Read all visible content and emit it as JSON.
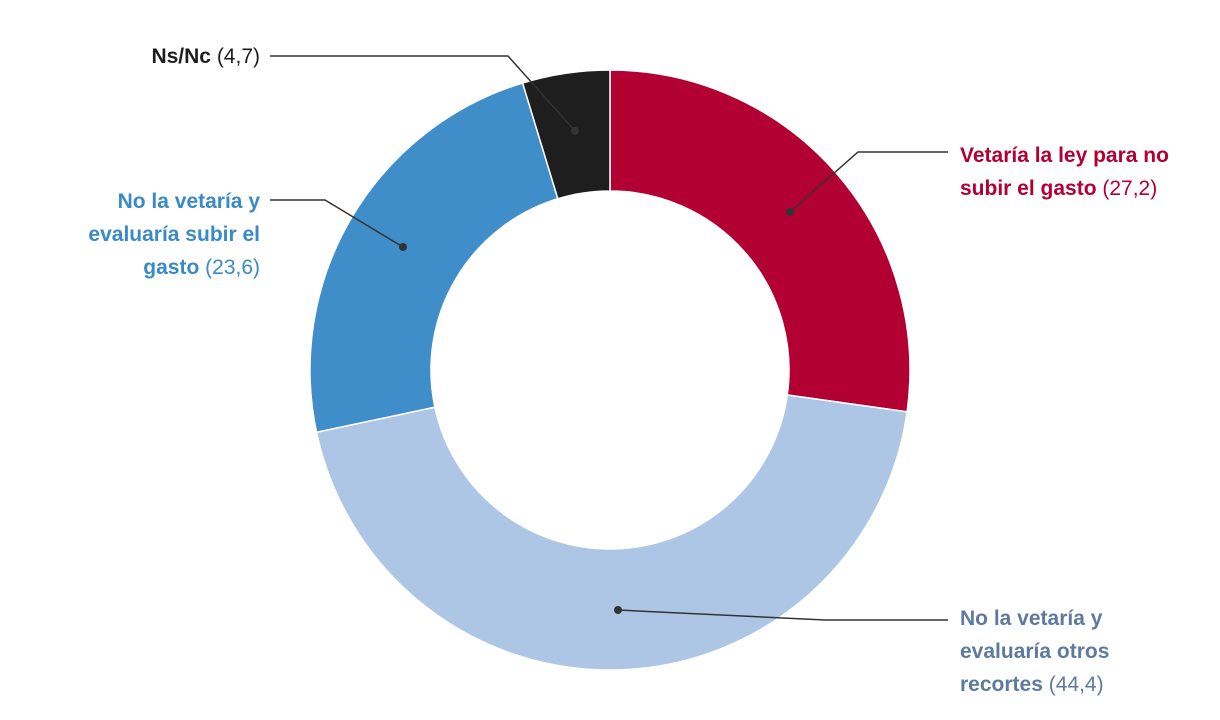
{
  "chart_data": {
    "type": "pie",
    "donut": true,
    "slices": [
      {
        "label": "Vetaría la ley para no subir el gasto",
        "value": 27.2,
        "value_text": "(27,2)",
        "color": "#b30033",
        "label_color": "#b30033"
      },
      {
        "label": "No la vetaría y evaluaría otros recortes",
        "value": 44.4,
        "value_text": "(44,4)",
        "color": "#aec6e6",
        "label_color": "#5e7a9e"
      },
      {
        "label": "No la vetaría y evaluaría subir el gasto",
        "value": 23.6,
        "value_text": "(23,6)",
        "color": "#3f8dc9",
        "label_color": "#3a8ac7"
      },
      {
        "label": "Ns/Nc",
        "value": 4.7,
        "value_text": "(4,7)",
        "color": "#1e1e1e",
        "label_color": "#1e1e1e"
      }
    ]
  }
}
